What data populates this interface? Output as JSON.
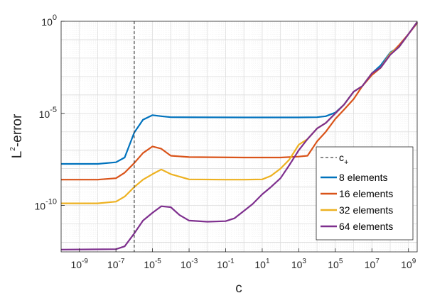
{
  "chart_data": {
    "type": "line",
    "xlabel": "c",
    "ylabel_base": "L",
    "ylabel_sup": "2",
    "ylabel_rest": "-error",
    "x_scale": "log",
    "y_scale": "log",
    "xlim": [
      1e-10,
      3000000000.0
    ],
    "ylim": [
      3e-13,
      1
    ],
    "grid": true,
    "legend_position": "lower-right",
    "x_tick_labels": [
      {
        "base": "10",
        "exp": "-9",
        "value": 1e-09
      },
      {
        "base": "10",
        "exp": "-7",
        "value": 1e-07
      },
      {
        "base": "10",
        "exp": "-5",
        "value": 1e-05
      },
      {
        "base": "10",
        "exp": "-3",
        "value": 0.001
      },
      {
        "base": "10",
        "exp": "-1",
        "value": 0.1
      },
      {
        "base": "10",
        "exp": "1",
        "value": 10.0
      },
      {
        "base": "10",
        "exp": "3",
        "value": 1000.0
      },
      {
        "base": "10",
        "exp": "5",
        "value": 100000.0
      },
      {
        "base": "10",
        "exp": "7",
        "value": 10000000.0
      },
      {
        "base": "10",
        "exp": "9",
        "value": 1000000000.0
      }
    ],
    "y_tick_labels": [
      {
        "base": "10",
        "exp": "-10",
        "value": 1e-10
      },
      {
        "base": "10",
        "exp": "-5",
        "value": 1e-05
      },
      {
        "base": "10",
        "exp": "0",
        "value": 1
      }
    ],
    "reference_line": {
      "label_base": "c",
      "label_sub": "+",
      "x": 1e-06,
      "color": "#444444"
    },
    "series": [
      {
        "name": "8 elements",
        "color": "#0072BD",
        "points": [
          [
            1e-10,
            1.8e-08
          ],
          [
            1e-08,
            1.8e-08
          ],
          [
            1e-07,
            2.2e-08
          ],
          [
            3e-07,
            4e-08
          ],
          [
            1e-06,
            9e-07
          ],
          [
            3e-06,
            4.5e-06
          ],
          [
            1e-05,
            8e-06
          ],
          [
            3e-05,
            7e-06
          ],
          [
            0.0001,
            6.2e-06
          ],
          [
            1,
            6e-06
          ],
          [
            100.0,
            6e-06
          ],
          [
            1000.0,
            6e-06
          ],
          [
            10000.0,
            6.2e-06
          ],
          [
            30000.0,
            7e-06
          ],
          [
            100000.0,
            1.1e-05
          ],
          [
            300000.0,
            3e-05
          ],
          [
            1000000.0,
            0.00015
          ],
          [
            3000000.0,
            0.0003
          ],
          [
            10000000.0,
            0.0015
          ],
          [
            30000000.0,
            0.004
          ],
          [
            100000000.0,
            0.02
          ],
          [
            300000000.0,
            0.04
          ],
          [
            1000000000.0,
            0.2
          ],
          [
            3000000000.0,
            0.9
          ]
        ]
      },
      {
        "name": "16 elements",
        "color": "#D95319",
        "points": [
          [
            1e-10,
            2.5e-09
          ],
          [
            1e-08,
            2.5e-09
          ],
          [
            1e-07,
            3e-09
          ],
          [
            3e-07,
            6e-09
          ],
          [
            1e-06,
            2e-08
          ],
          [
            3e-06,
            7e-08
          ],
          [
            1e-05,
            1.6e-07
          ],
          [
            3e-05,
            1.2e-07
          ],
          [
            0.0001,
            5e-08
          ],
          [
            0.001,
            4.2e-08
          ],
          [
            1,
            4e-08
          ],
          [
            100.0,
            4e-08
          ],
          [
            1000.0,
            4.5e-08
          ],
          [
            3000.0,
            5e-08
          ],
          [
            10000.0,
            3e-07
          ],
          [
            30000.0,
            1e-06
          ],
          [
            100000.0,
            5e-06
          ],
          [
            300000.0,
            1.6e-05
          ],
          [
            1000000.0,
            6e-05
          ],
          [
            3000000.0,
            0.0003
          ],
          [
            10000000.0,
            0.0012
          ],
          [
            30000000.0,
            0.003
          ],
          [
            100000000.0,
            0.016
          ],
          [
            300000000.0,
            0.05
          ],
          [
            1000000000.0,
            0.2
          ],
          [
            3000000000.0,
            0.8
          ]
        ]
      },
      {
        "name": "32 elements",
        "color": "#EDB120",
        "points": [
          [
            1e-10,
            1.3e-10
          ],
          [
            1e-08,
            1.3e-10
          ],
          [
            1e-07,
            1.6e-10
          ],
          [
            3e-07,
            3e-10
          ],
          [
            1e-06,
            1e-09
          ],
          [
            3e-06,
            2.5e-09
          ],
          [
            1e-05,
            5e-09
          ],
          [
            3e-05,
            9e-09
          ],
          [
            0.0001,
            5e-09
          ],
          [
            0.001,
            2.6e-09
          ],
          [
            0.1,
            2.5e-09
          ],
          [
            1,
            2.5e-09
          ],
          [
            10,
            2.6e-09
          ],
          [
            30,
            4e-09
          ],
          [
            100.0,
            1e-08
          ],
          [
            300.0,
            3e-08
          ],
          [
            1000.0,
            2e-07
          ],
          [
            3000.0,
            4e-07
          ],
          [
            10000.0,
            1.5e-06
          ],
          [
            30000.0,
            3e-06
          ],
          [
            100000.0,
            1e-05
          ],
          [
            300000.0,
            3e-05
          ],
          [
            1000000.0,
            0.00015
          ],
          [
            3000000.0,
            0.0003
          ],
          [
            10000000.0,
            0.0015
          ],
          [
            30000000.0,
            0.003
          ],
          [
            100000000.0,
            0.018
          ],
          [
            300000000.0,
            0.04
          ],
          [
            1000000000.0,
            0.2
          ],
          [
            3000000000.0,
            0.9
          ]
        ]
      },
      {
        "name": "64 elements",
        "color": "#7E2F8E",
        "points": [
          [
            1e-10,
            4e-13
          ],
          [
            1e-07,
            4.2e-13
          ],
          [
            3e-07,
            6e-13
          ],
          [
            1e-06,
            3e-12
          ],
          [
            3e-06,
            1.5e-11
          ],
          [
            1e-05,
            4e-11
          ],
          [
            3e-05,
            9e-11
          ],
          [
            0.0001,
            8e-11
          ],
          [
            0.0003,
            3e-11
          ],
          [
            0.001,
            1.5e-11
          ],
          [
            0.01,
            1.3e-11
          ],
          [
            0.1,
            1.4e-11
          ],
          [
            0.3,
            2e-11
          ],
          [
            1,
            5e-11
          ],
          [
            3,
            1.2e-10
          ],
          [
            10,
            4e-10
          ],
          [
            30,
            1e-09
          ],
          [
            100.0,
            3e-09
          ],
          [
            300.0,
            1.5e-08
          ],
          [
            1000.0,
            1e-07
          ],
          [
            3000.0,
            4e-07
          ],
          [
            10000.0,
            1.5e-06
          ],
          [
            30000.0,
            3e-06
          ],
          [
            100000.0,
            1e-05
          ],
          [
            300000.0,
            3e-05
          ],
          [
            1000000.0,
            0.00015
          ],
          [
            3000000.0,
            0.0003
          ],
          [
            10000000.0,
            0.0015
          ],
          [
            30000000.0,
            0.003
          ],
          [
            100000000.0,
            0.015
          ],
          [
            300000000.0,
            0.04
          ],
          [
            1000000000.0,
            0.2
          ],
          [
            3000000000.0,
            0.9
          ]
        ]
      }
    ]
  }
}
